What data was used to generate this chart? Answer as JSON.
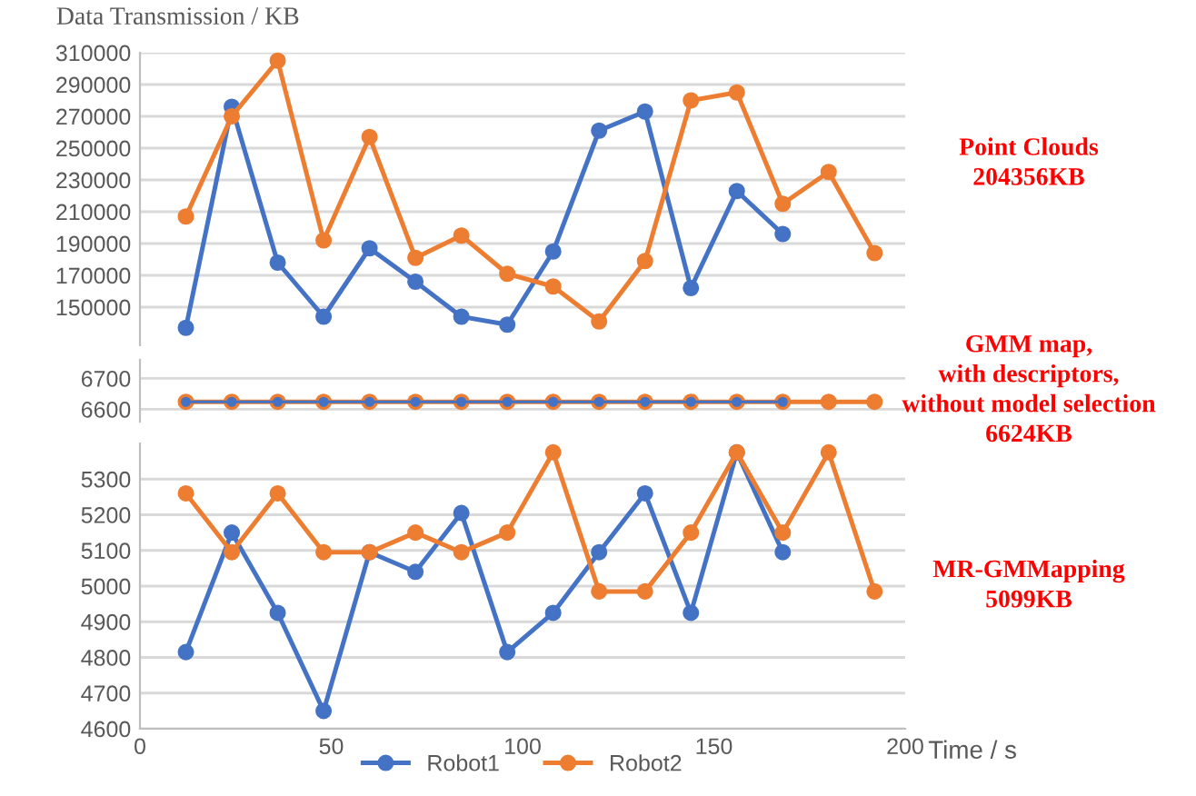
{
  "chart_data": [
    {
      "type": "line",
      "ylabel": "Data Transmission / KB",
      "marker": "circle",
      "grid": "y",
      "tick_labels": "y",
      "legend": "bottom",
      "xlim": [
        0,
        200
      ],
      "ylim": [
        126000,
        310000
      ],
      "yticks": [
        150000,
        170000,
        190000,
        210000,
        230000,
        250000,
        270000,
        290000,
        310000
      ],
      "annotations": [
        "Point Clouds\n204356KB"
      ],
      "series": [
        {
          "name": "Robot1",
          "color": "#4472c4",
          "x": [
            12,
            24,
            36,
            48,
            60,
            72,
            84,
            96,
            108,
            120,
            132,
            144,
            156,
            168
          ],
          "values": [
            137000,
            276000,
            178000,
            144000,
            187000,
            166000,
            144000,
            139000,
            185000,
            261000,
            273000,
            162000,
            223000,
            196000
          ]
        },
        {
          "name": "Robot2",
          "color": "#ed7d31",
          "x": [
            12,
            24,
            36,
            48,
            60,
            72,
            84,
            96,
            108,
            120,
            132,
            144,
            156,
            168,
            180,
            192
          ],
          "values": [
            207000,
            270000,
            305000,
            192000,
            257000,
            181000,
            195000,
            171000,
            163000,
            141000,
            179000,
            280000,
            285000,
            215000,
            235000,
            184000
          ]
        }
      ]
    },
    {
      "type": "line",
      "marker": "circle",
      "grid": "y",
      "tick_labels": "y",
      "xlim": [
        0,
        200
      ],
      "ylim": [
        6560,
        6760
      ],
      "yticks": [
        6600,
        6700
      ],
      "annotations": [
        "GMM map,\nwith descriptors,\nwithout model selection\n6624KB"
      ],
      "series": [
        {
          "name": "Robot1",
          "color": "#4472c4",
          "x": [
            12,
            24,
            36,
            48,
            60,
            72,
            84,
            96,
            108,
            120,
            132,
            144,
            156,
            168
          ],
          "values": [
            6624,
            6624,
            6624,
            6624,
            6624,
            6624,
            6624,
            6624,
            6624,
            6624,
            6624,
            6624,
            6624,
            6624
          ]
        },
        {
          "name": "Robot2",
          "color": "#ed7d31",
          "x": [
            12,
            24,
            36,
            48,
            60,
            72,
            84,
            96,
            108,
            120,
            132,
            144,
            156,
            168,
            180,
            192
          ],
          "values": [
            6624,
            6624,
            6624,
            6624,
            6624,
            6624,
            6624,
            6624,
            6624,
            6624,
            6624,
            6624,
            6624,
            6624,
            6624,
            6624
          ]
        }
      ]
    },
    {
      "type": "line",
      "xlabel": "Time / s",
      "marker": "circle",
      "grid": "y",
      "xlim": [
        0,
        200
      ],
      "xticks": [
        0,
        50,
        100,
        150,
        200
      ],
      "ylim": [
        4600,
        5400
      ],
      "yticks": [
        4600,
        4700,
        4800,
        4900,
        5000,
        5100,
        5200,
        5300
      ],
      "annotations": [
        "MR-GMMapping\n5099KB"
      ],
      "series": [
        {
          "name": "Robot1",
          "color": "#4472c4",
          "x": [
            12,
            24,
            36,
            48,
            60,
            72,
            84,
            96,
            108,
            120,
            132,
            144,
            156,
            168
          ],
          "values": [
            4815,
            5150,
            4925,
            4650,
            5095,
            5040,
            5205,
            4815,
            4925,
            5095,
            5260,
            4925,
            5375,
            5095
          ]
        },
        {
          "name": "Robot2",
          "color": "#ed7d31",
          "x": [
            12,
            24,
            36,
            48,
            60,
            72,
            84,
            96,
            108,
            120,
            132,
            144,
            156,
            168,
            180,
            192
          ],
          "values": [
            5260,
            5095,
            5260,
            5095,
            5095,
            5150,
            5095,
            5150,
            5375,
            4985,
            4985,
            5150,
            5375,
            5150,
            5375,
            4985
          ]
        }
      ]
    }
  ]
}
